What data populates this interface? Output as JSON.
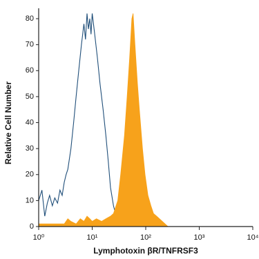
{
  "chart_data": {
    "type": "histogram-overlay",
    "xlabel": "Lymphotoxin βR/TNFRSF3",
    "ylabel": "Relative Cell Number",
    "xscale": "log",
    "xlim": [
      1,
      10000
    ],
    "xticks": [
      {
        "value": 1,
        "label": "10⁰"
      },
      {
        "value": 10,
        "label": "10¹"
      },
      {
        "value": 100,
        "label": "10²"
      },
      {
        "value": 1000,
        "label": "10³"
      },
      {
        "value": 10000,
        "label": "10⁴"
      }
    ],
    "ylim": [
      0,
      84
    ],
    "yticks": [
      0,
      10,
      20,
      30,
      40,
      50,
      60,
      70,
      80
    ],
    "series": [
      {
        "color": "#1f4e79",
        "fill": false,
        "x": [
          1,
          1.15,
          1.3,
          1.45,
          1.6,
          1.8,
          2,
          2.25,
          2.5,
          2.75,
          3,
          3.25,
          3.5,
          4,
          4.5,
          5,
          5.6,
          6.3,
          7,
          7.5,
          8,
          8.5,
          9,
          9.5,
          10,
          11,
          12.5,
          14,
          16,
          18,
          20,
          22,
          25,
          28,
          32,
          36,
          40
        ],
        "values": [
          10,
          14,
          4,
          9,
          12,
          8,
          11,
          9,
          14,
          12,
          17,
          20,
          22,
          30,
          40,
          50,
          60,
          70,
          78,
          72,
          82,
          76,
          80,
          74,
          82,
          75,
          65,
          55,
          45,
          35,
          25,
          15,
          8,
          4,
          2,
          1,
          0
        ]
      },
      {
        "color": "#f7a21b",
        "fill": true,
        "x": [
          1,
          2,
          3,
          3.5,
          4,
          5,
          6,
          7,
          8,
          9,
          10,
          12,
          15,
          18,
          22,
          25,
          30,
          34,
          40,
          45,
          50,
          55,
          58,
          63,
          70,
          76,
          87,
          97,
          110,
          125,
          140,
          160,
          180,
          230,
          260,
          10000
        ],
        "values": [
          1,
          1,
          1,
          3,
          2,
          1,
          3,
          2,
          4,
          3,
          2,
          3,
          2,
          3,
          4,
          5,
          10,
          20,
          35,
          50,
          65,
          80,
          82,
          70,
          55,
          45,
          30,
          20,
          12,
          8,
          5,
          4,
          3,
          1,
          0,
          0
        ]
      }
    ]
  }
}
